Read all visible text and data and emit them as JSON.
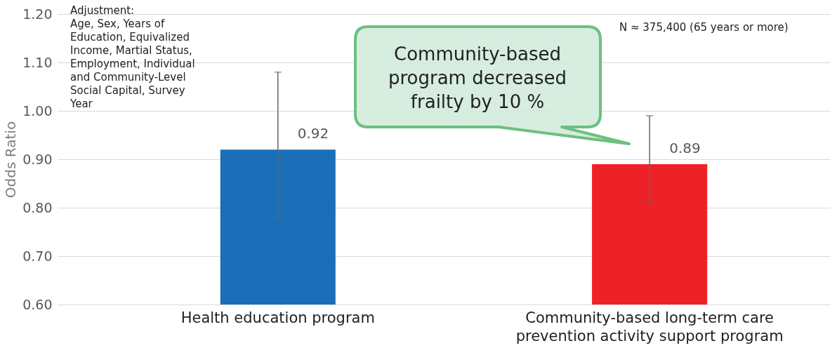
{
  "chart_data": {
    "type": "bar",
    "ylabel": "Odds Ratio",
    "categories": [
      "Health education program",
      "Community-based long-term care prevention activity support program"
    ],
    "values": [
      0.92,
      0.89
    ],
    "colors": [
      "#1a6fb8",
      "#ee2226"
    ],
    "errors": [
      [
        0.78,
        1.08
      ],
      [
        0.81,
        0.99
      ]
    ],
    "ylim": [
      0.6,
      1.2
    ],
    "yticks": [
      {
        "value": 0.6,
        "label": "0.60"
      },
      {
        "value": 0.7,
        "label": "0.70"
      },
      {
        "value": 0.8,
        "label": "0.80"
      },
      {
        "value": 0.9,
        "label": "0.90"
      },
      {
        "value": 1.0,
        "label": "1.00"
      },
      {
        "value": 1.1,
        "label": "1.10"
      },
      {
        "value": 1.2,
        "label": "1.20"
      }
    ],
    "grid": "y",
    "data_labels": true,
    "annotations": [
      "Adjustment:",
      "Age, Sex, Years of Education, Equivalized Income, Martial Status, Employment, Individual and Community-Level Social Capital, Survey Year",
      "N ≈ 375,400 (65 years or more)",
      "Community-based program decreased frailty by 10 %"
    ]
  }
}
